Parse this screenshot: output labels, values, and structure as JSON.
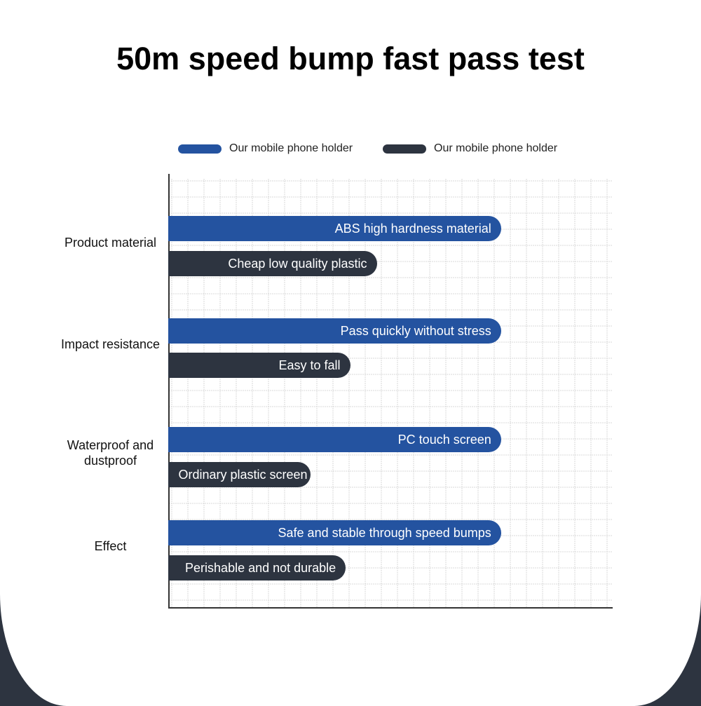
{
  "chart_data": {
    "type": "bar",
    "orientation": "horizontal",
    "title": "50m speed bump fast pass test",
    "xlim": [
      0,
      100
    ],
    "grid": true,
    "legend_placement": "top",
    "colors": {
      "ours": "#2453a0",
      "other": "#2d3440"
    },
    "legend": [
      "Our mobile phone holder",
      "Our mobile phone holder"
    ],
    "categories": [
      "Product material",
      "Impact resistance",
      "Waterproof and dustproof",
      "Effect"
    ],
    "series": [
      {
        "name": "Our mobile phone holder",
        "values": [
          75,
          75,
          75,
          75
        ],
        "labels": [
          "ABS high hardness material",
          "Pass quickly without stress",
          "PC touch screen",
          "Safe and stable through speed bumps"
        ]
      },
      {
        "name": "Our mobile phone holder",
        "values": [
          47,
          41,
          32,
          40
        ],
        "labels": [
          "Cheap low quality plastic",
          "Easy to fall",
          "Ordinary plastic screen",
          "Perishable and not durable"
        ]
      }
    ]
  }
}
